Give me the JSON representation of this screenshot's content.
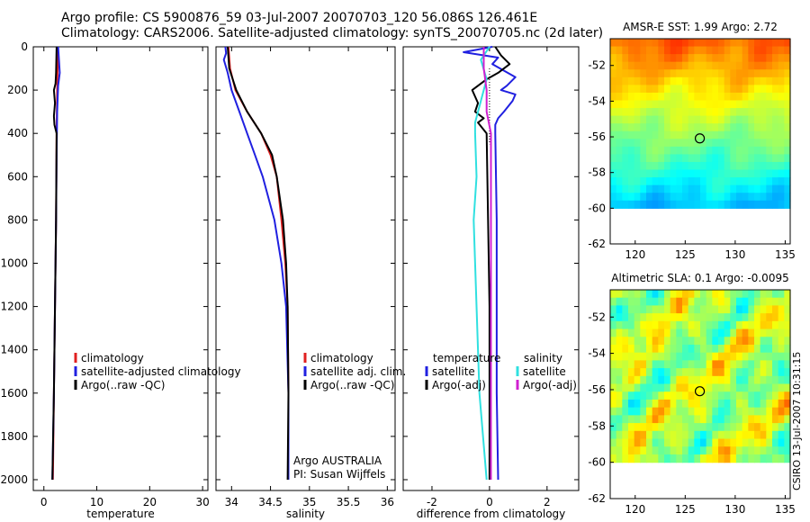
{
  "title": {
    "line1": "Argo profile: CS 5900876_59 03-Jul-2007 20070703_120 56.086S 126.461E",
    "line2": "Climatology: CARS2006. Satellite-adjusted climatology: synTS_20070705.nc (2d later)"
  },
  "credit": "CSIRO 13-Jul-2007 10:31:15",
  "colors": {
    "climatology": "#e02020",
    "satellite": "#2020e0",
    "argo": "#000000",
    "sat_salinity": "#30e0e0",
    "argo_adj_sal": "#d020d0"
  },
  "chart_data": [
    {
      "type": "line",
      "id": "temperature",
      "xlabel": "temperature",
      "ylabel": "",
      "xlim": [
        -2,
        31
      ],
      "ylim": [
        2050,
        0
      ],
      "yinverted": true,
      "xticks": [
        0,
        10,
        20,
        30
      ],
      "yticks": [
        0,
        200,
        400,
        600,
        800,
        1000,
        1200,
        1400,
        1600,
        1800,
        2000
      ],
      "legend": [
        "climatology",
        "satellite-adjusted climatology",
        "Argo(..raw -QC)"
      ],
      "series": [
        {
          "name": "climatology",
          "color": "#e02020",
          "points": [
            [
              2.6,
              0
            ],
            [
              2.6,
              100
            ],
            [
              2.5,
              200
            ],
            [
              2.4,
              400
            ],
            [
              2.3,
              800
            ],
            [
              2.1,
              1200
            ],
            [
              1.9,
              1600
            ],
            [
              1.7,
              2000
            ]
          ]
        },
        {
          "name": "satellite-adjusted climatology",
          "color": "#2020e0",
          "points": [
            [
              2.7,
              0
            ],
            [
              2.8,
              40
            ],
            [
              3.0,
              120
            ],
            [
              2.7,
              180
            ],
            [
              2.5,
              300
            ],
            [
              2.4,
              500
            ],
            [
              2.3,
              800
            ],
            [
              2.1,
              1200
            ],
            [
              1.9,
              1600
            ],
            [
              1.6,
              2000
            ]
          ]
        },
        {
          "name": "Argo(..raw -QC)",
          "color": "#000000",
          "points": [
            [
              2.4,
              0
            ],
            [
              2.3,
              120
            ],
            [
              2.2,
              170
            ],
            [
              1.9,
              200
            ],
            [
              2.1,
              260
            ],
            [
              1.9,
              320
            ],
            [
              2.0,
              360
            ],
            [
              2.4,
              400
            ],
            [
              2.3,
              800
            ],
            [
              2.1,
              1200
            ],
            [
              1.9,
              1600
            ],
            [
              1.6,
              2000
            ]
          ]
        }
      ]
    },
    {
      "type": "line",
      "id": "salinity",
      "xlabel": "salinity",
      "xlim": [
        33.8,
        36.1
      ],
      "ylim": [
        2050,
        0
      ],
      "yinverted": true,
      "xticks": [
        34,
        34.5,
        35,
        35.5,
        36
      ],
      "xticklabels": [
        "34",
        "34.5",
        "35",
        "35.5",
        "36"
      ],
      "legend": [
        "climatology",
        "satellite adj. clim.",
        "Argo(..raw -QC)"
      ],
      "annotations": [
        "Argo AUSTRALIA",
        "PI: Susan Wijffels"
      ],
      "series": [
        {
          "name": "climatology",
          "color": "#e02020",
          "points": [
            [
              33.96,
              0
            ],
            [
              33.98,
              100
            ],
            [
              34.05,
              200
            ],
            [
              34.2,
              300
            ],
            [
              34.38,
              400
            ],
            [
              34.5,
              500
            ],
            [
              34.58,
              600
            ],
            [
              34.64,
              800
            ],
            [
              34.69,
              1000
            ],
            [
              34.72,
              1200
            ],
            [
              34.73,
              1600
            ],
            [
              34.73,
              2000
            ]
          ]
        },
        {
          "name": "satellite adj. clim.",
          "color": "#2020e0",
          "points": [
            [
              33.92,
              0
            ],
            [
              33.93,
              30
            ],
            [
              33.9,
              60
            ],
            [
              33.95,
              120
            ],
            [
              34.0,
              200
            ],
            [
              34.1,
              300
            ],
            [
              34.2,
              400
            ],
            [
              34.3,
              500
            ],
            [
              34.4,
              600
            ],
            [
              34.55,
              800
            ],
            [
              34.64,
              1000
            ],
            [
              34.7,
              1200
            ],
            [
              34.73,
              1600
            ],
            [
              34.73,
              2000
            ]
          ]
        },
        {
          "name": "Argo(..raw -QC)",
          "color": "#000000",
          "points": [
            [
              33.95,
              0
            ],
            [
              33.97,
              100
            ],
            [
              34.06,
              200
            ],
            [
              34.2,
              300
            ],
            [
              34.38,
              400
            ],
            [
              34.52,
              500
            ],
            [
              34.58,
              600
            ],
            [
              34.66,
              800
            ],
            [
              34.7,
              1000
            ],
            [
              34.72,
              1200
            ],
            [
              34.73,
              1600
            ],
            [
              34.72,
              2000
            ]
          ]
        }
      ]
    },
    {
      "type": "line",
      "id": "difference",
      "xlabel": "difference from climatology",
      "xlim": [
        -3,
        3.1
      ],
      "ylim": [
        2050,
        0
      ],
      "yinverted": true,
      "xticks": [
        -2,
        0,
        2
      ],
      "legend_left": {
        "title": "temperature",
        "items": [
          "satellite",
          "Argo(-adj)"
        ]
      },
      "legend_right": {
        "title": "salinity",
        "items": [
          "satellite",
          "Argo(-adj)"
        ]
      },
      "series": [
        {
          "name": "temperature satellite",
          "color": "#2020e0",
          "points": [
            [
              0.1,
              0
            ],
            [
              -0.9,
              25
            ],
            [
              0.3,
              50
            ],
            [
              0.1,
              80
            ],
            [
              0.5,
              110
            ],
            [
              0.9,
              140
            ],
            [
              0.6,
              180
            ],
            [
              0.4,
              200
            ],
            [
              0.9,
              220
            ],
            [
              0.8,
              250
            ],
            [
              0.5,
              300
            ],
            [
              0.3,
              330
            ],
            [
              0.2,
              360
            ],
            [
              0.2,
              400
            ],
            [
              0.25,
              800
            ],
            [
              0.25,
              1200
            ],
            [
              0.25,
              1600
            ],
            [
              0.3,
              2000
            ]
          ]
        },
        {
          "name": "temperature Argo(-adj)",
          "color": "#000000",
          "points": [
            [
              0.2,
              0
            ],
            [
              0.4,
              40
            ],
            [
              0.7,
              80
            ],
            [
              0.3,
              120
            ],
            [
              -0.1,
              150
            ],
            [
              -0.6,
              200
            ],
            [
              -0.4,
              260
            ],
            [
              -0.5,
              300
            ],
            [
              -0.2,
              330
            ],
            [
              -0.4,
              350
            ],
            [
              -0.1,
              400
            ],
            [
              -0.05,
              800
            ],
            [
              0.0,
              1200
            ],
            [
              0.0,
              1600
            ],
            [
              0.0,
              2000
            ]
          ]
        },
        {
          "name": "salinity satellite",
          "color": "#30e0e0",
          "points": [
            [
              0.0,
              0
            ],
            [
              -0.3,
              60
            ],
            [
              -0.1,
              150
            ],
            [
              -0.3,
              250
            ],
            [
              -0.5,
              350
            ],
            [
              -0.5,
              400
            ],
            [
              -0.45,
              600
            ],
            [
              -0.55,
              800
            ],
            [
              -0.5,
              1000
            ],
            [
              -0.45,
              1200
            ],
            [
              -0.35,
              1600
            ],
            [
              -0.1,
              2000
            ]
          ]
        },
        {
          "name": "salinity Argo(-adj)",
          "color": "#d020d0",
          "points": [
            [
              -0.2,
              0
            ],
            [
              -0.2,
              100
            ],
            [
              -0.1,
              200
            ],
            [
              -0.1,
              300
            ],
            [
              0.05,
              400
            ],
            [
              0.05,
              800
            ],
            [
              0.05,
              1200
            ],
            [
              0.05,
              1600
            ],
            [
              0.05,
              2000
            ]
          ]
        }
      ]
    },
    {
      "type": "heatmap",
      "id": "sst",
      "title": "AMSR-E SST: 1.99  Argo: 2.72",
      "xlim": [
        117.5,
        135.5
      ],
      "ylim": [
        -62,
        -50.5
      ],
      "xticks": [
        120,
        125,
        130,
        135
      ],
      "yticks": [
        -52,
        -54,
        -56,
        -58,
        -60,
        -62
      ],
      "marker": {
        "lon": 126.461,
        "lat": -56.086
      },
      "data_lat_min": -60
    },
    {
      "type": "heatmap",
      "id": "sla",
      "title": "Altimetric SLA: 0.1  Argo: -0.0095",
      "xlim": [
        117.5,
        135.5
      ],
      "ylim": [
        -62,
        -50.5
      ],
      "xticks": [
        120,
        125,
        130,
        135
      ],
      "yticks": [
        -52,
        -54,
        -56,
        -58,
        -60,
        -62
      ],
      "marker": {
        "lon": 126.461,
        "lat": -56.086
      },
      "data_lat_min": -60
    }
  ]
}
